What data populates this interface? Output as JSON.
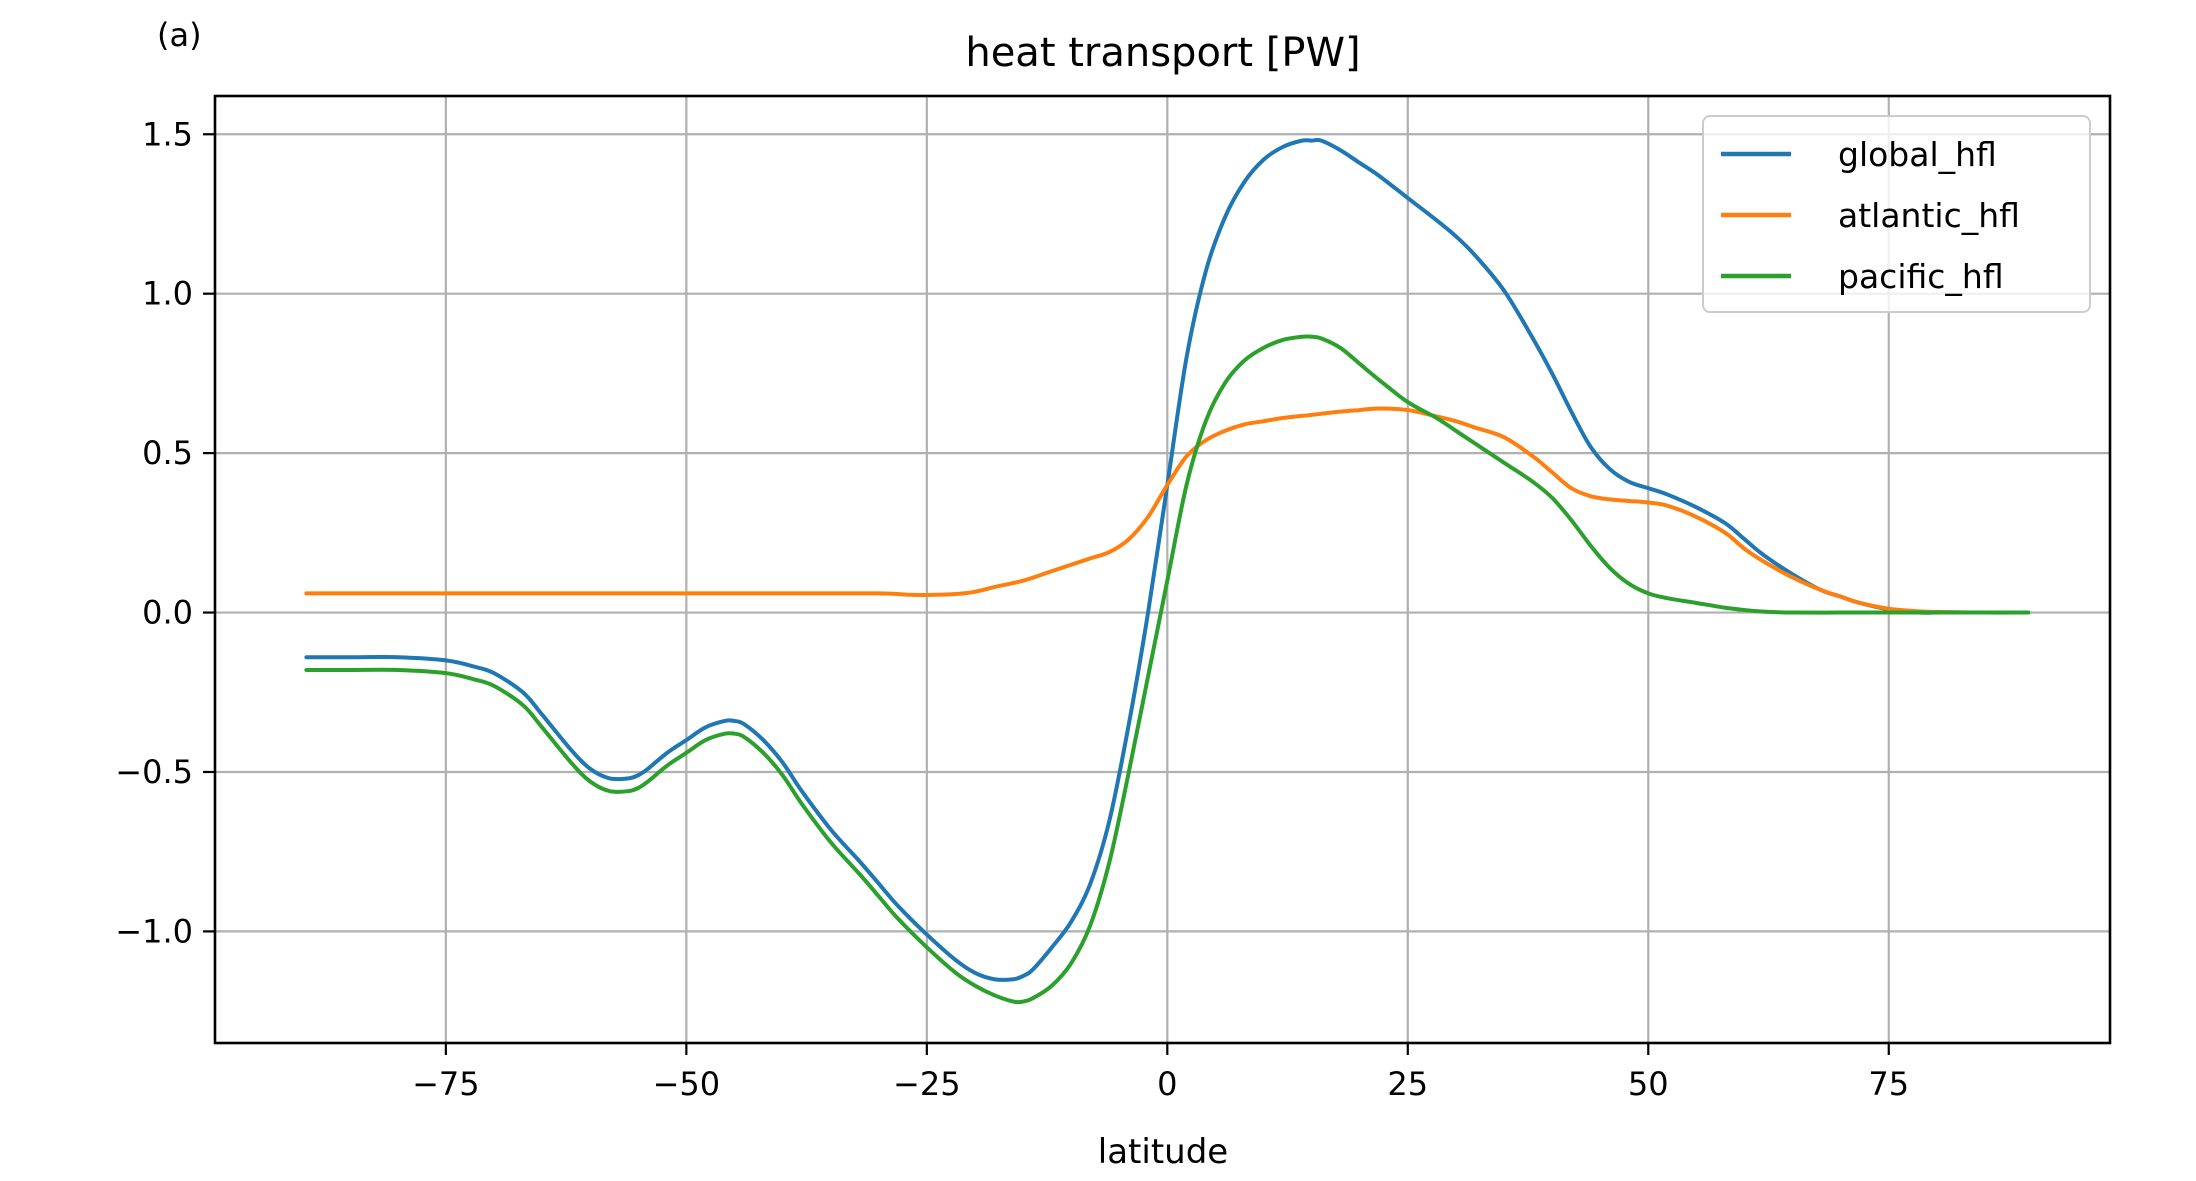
{
  "chart_data": {
    "type": "line",
    "panel_label": "(a)",
    "title": "heat transport [PW]",
    "xlabel": "latitude",
    "ylabel": "",
    "xlim": [
      -99,
      98
    ],
    "ylim": [
      -1.35,
      1.62
    ],
    "xticks": [
      -75,
      -50,
      -25,
      0,
      25,
      50,
      75
    ],
    "xtick_labels": [
      "−75",
      "−50",
      "−25",
      "0",
      "25",
      "50",
      "75"
    ],
    "yticks": [
      -1.0,
      -0.5,
      0.0,
      0.5,
      1.0,
      1.5
    ],
    "ytick_labels": [
      "−1.0",
      "−0.5",
      "0.0",
      "0.5",
      "1.0",
      "1.5"
    ],
    "grid": true,
    "legend_position": "top-right",
    "series": [
      {
        "name": "global_hfl",
        "color": "#1f77b4",
        "x": [
          -89.5,
          -85,
          -80,
          -75,
          -72,
          -70,
          -67,
          -65,
          -62,
          -60,
          -58,
          -56,
          -55,
          -54,
          -52,
          -50,
          -48,
          -46,
          -45,
          -44,
          -42,
          -40,
          -38,
          -35,
          -32,
          -30,
          -28,
          -25,
          -22,
          -20,
          -18,
          -16,
          -15,
          -14,
          -12,
          -10,
          -8,
          -6,
          -4,
          -2,
          0,
          2,
          4,
          6,
          8,
          10,
          12,
          14,
          15,
          16,
          18,
          20,
          22,
          25,
          28,
          30,
          32,
          35,
          38,
          40,
          42,
          44,
          46,
          48,
          50,
          52,
          55,
          58,
          60,
          62,
          65,
          68,
          70,
          72,
          75,
          78,
          80,
          85,
          89.5
        ],
        "values": [
          -0.14,
          -0.14,
          -0.14,
          -0.15,
          -0.17,
          -0.19,
          -0.25,
          -0.32,
          -0.43,
          -0.49,
          -0.52,
          -0.52,
          -0.51,
          -0.49,
          -0.44,
          -0.4,
          -0.36,
          -0.34,
          -0.34,
          -0.35,
          -0.4,
          -0.47,
          -0.56,
          -0.68,
          -0.78,
          -0.85,
          -0.92,
          -1.01,
          -1.09,
          -1.13,
          -1.15,
          -1.15,
          -1.14,
          -1.12,
          -1.05,
          -0.97,
          -0.85,
          -0.65,
          -0.35,
          0.0,
          0.4,
          0.8,
          1.07,
          1.24,
          1.35,
          1.42,
          1.46,
          1.48,
          1.48,
          1.48,
          1.45,
          1.41,
          1.37,
          1.3,
          1.23,
          1.18,
          1.12,
          1.01,
          0.86,
          0.75,
          0.63,
          0.52,
          0.45,
          0.41,
          0.39,
          0.37,
          0.33,
          0.28,
          0.23,
          0.18,
          0.12,
          0.07,
          0.05,
          0.03,
          0.01,
          0.0,
          0.0,
          0.0,
          0.0
        ]
      },
      {
        "name": "atlantic_hfl",
        "color": "#ff7f0e",
        "x": [
          -89.5,
          -80,
          -70,
          -60,
          -50,
          -40,
          -30,
          -27,
          -25,
          -22,
          -20,
          -18,
          -15,
          -12,
          -10,
          -8,
          -6,
          -4,
          -2,
          0,
          2,
          4,
          6,
          8,
          10,
          12,
          15,
          18,
          20,
          22,
          25,
          28,
          30,
          32,
          35,
          38,
          40,
          42,
          44,
          46,
          48,
          50,
          52,
          55,
          58,
          60,
          62,
          65,
          68,
          70,
          72,
          75,
          78,
          80,
          85,
          89.5
        ],
        "values": [
          0.06,
          0.06,
          0.06,
          0.06,
          0.06,
          0.06,
          0.06,
          0.056,
          0.055,
          0.058,
          0.065,
          0.08,
          0.1,
          0.13,
          0.15,
          0.17,
          0.19,
          0.23,
          0.3,
          0.4,
          0.49,
          0.54,
          0.57,
          0.59,
          0.6,
          0.61,
          0.62,
          0.63,
          0.635,
          0.64,
          0.635,
          0.615,
          0.6,
          0.58,
          0.55,
          0.49,
          0.44,
          0.39,
          0.365,
          0.355,
          0.35,
          0.345,
          0.335,
          0.3,
          0.25,
          0.2,
          0.16,
          0.11,
          0.07,
          0.05,
          0.03,
          0.012,
          0.004,
          0.002,
          0.0,
          0.0
        ]
      },
      {
        "name": "pacific_hfl",
        "color": "#2ca02c",
        "x": [
          -89.5,
          -85,
          -80,
          -75,
          -72,
          -70,
          -67,
          -65,
          -62,
          -60,
          -58,
          -56,
          -55,
          -54,
          -52,
          -50,
          -48,
          -46,
          -45,
          -44,
          -42,
          -40,
          -38,
          -35,
          -32,
          -30,
          -28,
          -25,
          -22,
          -20,
          -18,
          -16,
          -15,
          -14,
          -12,
          -10,
          -8,
          -6,
          -4,
          -2,
          0,
          2,
          4,
          6,
          8,
          10,
          12,
          14,
          15,
          16,
          18,
          20,
          22,
          25,
          28,
          30,
          32,
          35,
          38,
          40,
          42,
          44,
          46,
          48,
          50,
          52,
          55,
          58,
          60,
          62,
          65,
          70,
          75,
          80,
          85,
          89.5
        ],
        "values": [
          -0.18,
          -0.18,
          -0.18,
          -0.19,
          -0.21,
          -0.23,
          -0.29,
          -0.36,
          -0.47,
          -0.53,
          -0.56,
          -0.56,
          -0.55,
          -0.53,
          -0.48,
          -0.44,
          -0.4,
          -0.38,
          -0.38,
          -0.39,
          -0.44,
          -0.51,
          -0.6,
          -0.72,
          -0.82,
          -0.89,
          -0.96,
          -1.05,
          -1.13,
          -1.17,
          -1.2,
          -1.22,
          -1.22,
          -1.21,
          -1.17,
          -1.1,
          -0.98,
          -0.78,
          -0.5,
          -0.2,
          0.1,
          0.4,
          0.6,
          0.72,
          0.79,
          0.83,
          0.855,
          0.865,
          0.865,
          0.86,
          0.83,
          0.78,
          0.73,
          0.66,
          0.61,
          0.57,
          0.53,
          0.47,
          0.41,
          0.36,
          0.29,
          0.21,
          0.14,
          0.09,
          0.06,
          0.045,
          0.03,
          0.015,
          0.008,
          0.003,
          0.0,
          0.0,
          0.0,
          0.0,
          0.0,
          0.0
        ]
      }
    ]
  }
}
